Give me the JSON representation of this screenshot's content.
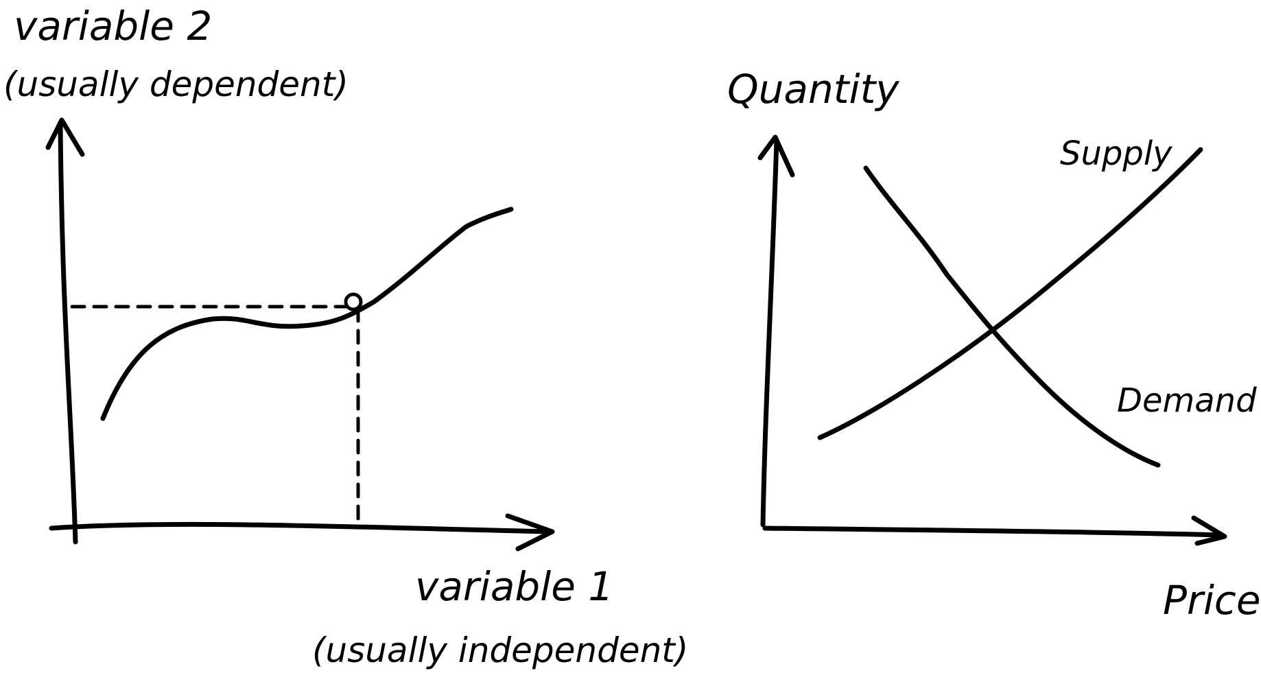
{
  "left_graph": {
    "y_label_line1": "variable 2",
    "y_label_line2": "(usually dependent)",
    "x_label_line1": "variable 1",
    "x_label_line2": "(usually independent)"
  },
  "right_graph": {
    "y_label": "Quantity",
    "x_label": "Price",
    "supply_label": "Supply",
    "demand_label": "Demand"
  }
}
